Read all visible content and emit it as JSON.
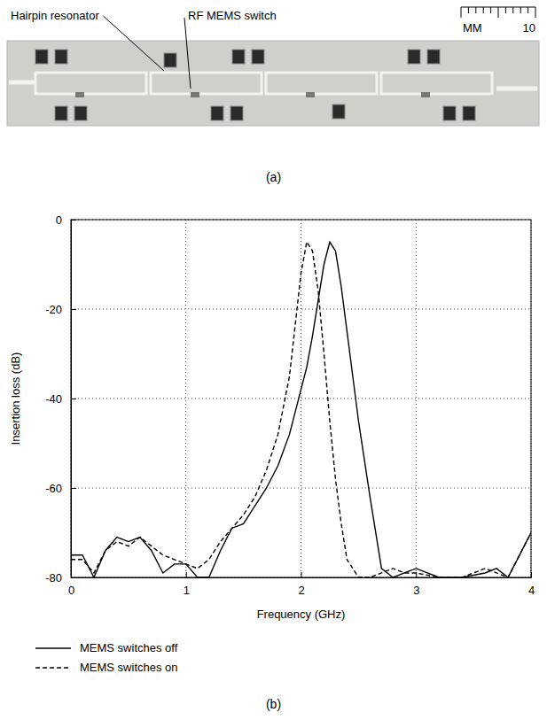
{
  "photo": {
    "labels": [
      "Hairpin resonator",
      "RF MEMS switch"
    ],
    "scale_unit": "MM",
    "scale_value": 10,
    "caption": "(a)"
  },
  "chart_data": {
    "type": "line",
    "caption": "(b)",
    "x_label": "Frequency (GHz)",
    "y_label": "Insertion loss (dB)",
    "x": [
      0,
      0.1,
      0.2,
      0.3,
      0.4,
      0.5,
      0.6,
      0.7,
      0.8,
      0.9,
      1.0,
      1.1,
      1.2,
      1.3,
      1.4,
      1.5,
      1.6,
      1.7,
      1.8,
      1.9,
      2.0,
      2.05,
      2.1,
      2.15,
      2.2,
      2.25,
      2.3,
      2.35,
      2.4,
      2.5,
      2.6,
      2.7,
      2.8,
      2.9,
      3.0,
      3.2,
      3.4,
      3.6,
      3.7,
      3.8,
      4.0
    ],
    "series": [
      {
        "name": "MEMS switches off",
        "color": "#000000",
        "line_style": "solid",
        "values": [
          -75,
          -75,
          -80,
          -74,
          -71,
          -72,
          -71,
          -74,
          -79,
          -77,
          -77,
          -80,
          -80,
          -74,
          -69,
          -68,
          -64,
          -60,
          -55,
          -48,
          -38,
          -33,
          -26,
          -18,
          -10,
          -5,
          -7,
          -15,
          -25,
          -45,
          -62,
          -78,
          -80,
          -79,
          -78,
          -80,
          -80,
          -79,
          -78,
          -80,
          -70
        ]
      },
      {
        "name": "MEMS switches on",
        "color": "#000000",
        "line_style": "dashed",
        "values": [
          -76,
          -76,
          -79,
          -74,
          -72,
          -73,
          -71,
          -73,
          -75,
          -76,
          -77,
          -78,
          -76,
          -72,
          -69,
          -66,
          -62,
          -56,
          -48,
          -35,
          -12,
          -5,
          -7,
          -16,
          -30,
          -45,
          -58,
          -68,
          -76,
          -80,
          -80,
          -79,
          -78,
          -79,
          -79,
          -80,
          -80,
          -78,
          -79,
          -80,
          -70
        ]
      }
    ],
    "xlim": [
      0,
      4
    ],
    "xticks": [
      0,
      1,
      2,
      3,
      4
    ],
    "ylim": [
      -80,
      0
    ],
    "yticks": [
      -80,
      -60,
      -40,
      -20,
      0
    ],
    "grid": true,
    "legend": "bottom"
  }
}
